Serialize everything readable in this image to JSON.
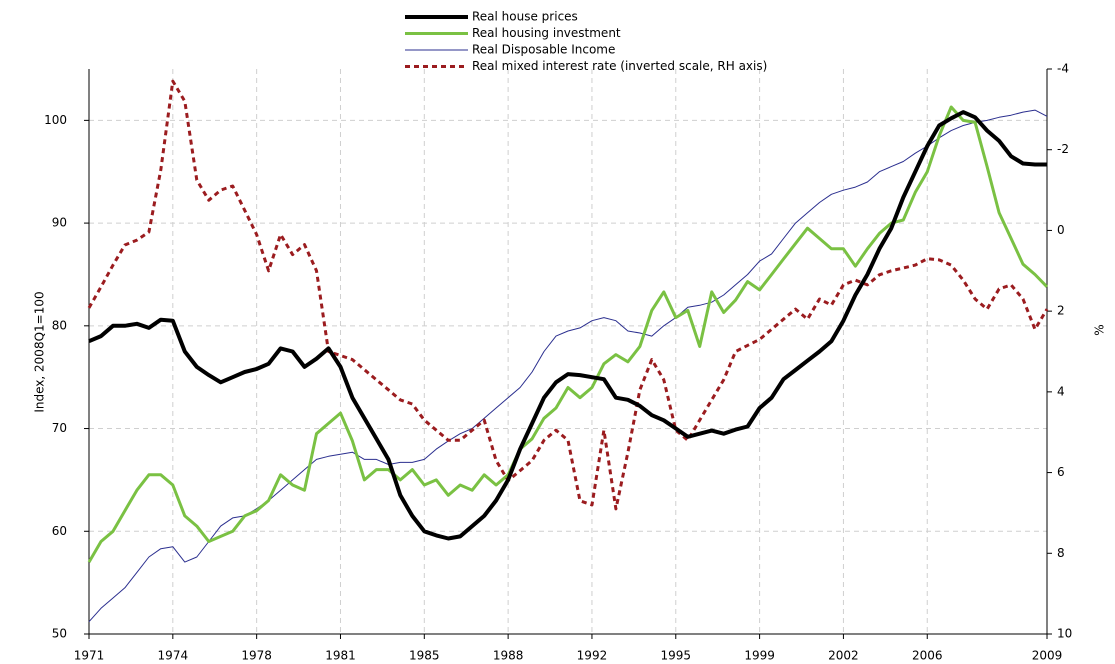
{
  "chart_data": {
    "type": "line",
    "y_label": "Index, 2008Q1=100",
    "y2_label": "%",
    "categories": [
      "1971",
      null,
      null,
      null,
      null,
      null,
      null,
      "1974",
      null,
      null,
      null,
      null,
      null,
      null,
      "1978",
      null,
      null,
      null,
      null,
      null,
      null,
      "1981",
      null,
      null,
      null,
      null,
      null,
      null,
      "1985",
      null,
      null,
      null,
      null,
      null,
      null,
      "1988",
      null,
      null,
      null,
      null,
      null,
      null,
      "1992",
      null,
      null,
      null,
      null,
      null,
      null,
      "1995",
      null,
      null,
      null,
      null,
      null,
      null,
      "1999",
      null,
      null,
      null,
      null,
      null,
      null,
      "2002",
      null,
      null,
      null,
      null,
      null,
      null,
      "2006",
      null,
      null,
      null,
      null,
      null,
      null,
      null,
      null,
      null,
      "2009"
    ],
    "series": [
      {
        "name": "Real house prices",
        "color": "#000000",
        "axis": "y",
        "values": [
          78.5,
          79,
          80,
          80,
          80.2,
          79.8,
          80.6,
          80.5,
          77.5,
          76,
          75.2,
          74.5,
          75,
          75.5,
          75.8,
          76.3,
          77.8,
          77.5,
          76,
          76.8,
          77.8,
          76,
          73,
          71,
          69,
          67,
          63.5,
          61.5,
          60,
          59.6,
          59.3,
          59.5,
          60.5,
          61.5,
          63,
          65,
          68,
          70.5,
          73,
          74.5,
          75.3,
          75.2,
          75,
          74.8,
          73,
          72.8,
          72.2,
          71.3,
          70.8,
          70,
          69.2,
          69.5,
          69.8,
          69.5,
          69.9,
          70.2,
          72,
          73,
          74.8,
          75.7,
          76.6,
          77.5,
          78.5,
          80.5,
          83,
          85,
          87.5,
          89.5,
          92.5,
          95,
          97.5,
          99.5,
          100.2,
          100.8,
          100.3,
          99,
          98,
          96.5,
          95.8,
          95.7,
          95.7
        ]
      },
      {
        "name": "Real housing investment",
        "color": "#7ac143",
        "axis": "y",
        "values": [
          57,
          59,
          60,
          62,
          64,
          65.5,
          65.5,
          64.5,
          61.5,
          60.5,
          59,
          59.5,
          60,
          61.5,
          62,
          63,
          65.5,
          64.5,
          64,
          69.5,
          70.5,
          71.5,
          68.8,
          65,
          66,
          66,
          65,
          66,
          64.5,
          65,
          63.5,
          64.5,
          64,
          65.5,
          64.5,
          65.5,
          68,
          69,
          71,
          72,
          74,
          73,
          74,
          76.3,
          77.2,
          76.5,
          78,
          81.5,
          83.3,
          80.8,
          81.5,
          78,
          83.3,
          81.3,
          82.5,
          84.3,
          83.5,
          85,
          86.5,
          88,
          89.5,
          88.5,
          87.5,
          87.5,
          85.8,
          87.5,
          89,
          90,
          90.3,
          93,
          95,
          98.5,
          101.3,
          100,
          99.8,
          95.5,
          91,
          88.5,
          86,
          85,
          83.8
        ]
      },
      {
        "name": "Real Disposable Income",
        "color": "#2b2f8f",
        "axis": "y",
        "values": [
          51.2,
          52.5,
          53.5,
          54.5,
          56,
          57.5,
          58.3,
          58.5,
          57,
          57.5,
          59,
          60.5,
          61.3,
          61.5,
          62.2,
          63,
          64,
          65,
          66,
          67,
          67.3,
          67.5,
          67.7,
          67,
          67,
          66.5,
          66.7,
          66.7,
          67,
          68,
          68.8,
          69.5,
          70,
          71,
          72,
          73,
          74,
          75.5,
          77.5,
          79,
          79.5,
          79.8,
          80.5,
          80.8,
          80.5,
          79.5,
          79.3,
          79,
          80,
          80.8,
          81.8,
          82,
          82.3,
          83,
          84,
          85,
          86.3,
          87,
          88.5,
          90,
          91,
          92,
          92.8,
          93.2,
          93.5,
          94,
          95,
          95.5,
          96,
          96.8,
          97.5,
          98.3,
          99,
          99.5,
          99.8,
          100,
          100.3,
          100.5,
          100.8,
          101,
          100.4
        ]
      },
      {
        "name": "Real mixed interest rate (inverted scale, RH axis)",
        "color": "#9b1c1f",
        "axis": "y2",
        "values": [
          1.92,
          1.4,
          0.86,
          0.36,
          0.24,
          0.04,
          -1.5,
          -3.7,
          -3.2,
          -1.25,
          -0.75,
          -1,
          -1.1,
          -0.5,
          0.1,
          1,
          0.1,
          0.6,
          0.35,
          1,
          3,
          3.1,
          3.2,
          3.45,
          3.7,
          3.95,
          4.2,
          4.3,
          4.7,
          4.95,
          5.2,
          5.2,
          4.95,
          4.7,
          5.7,
          6.2,
          5.95,
          5.7,
          5.2,
          4.95,
          5.2,
          6.7,
          6.8,
          4.95,
          6.9,
          5.5,
          3.95,
          3.2,
          3.7,
          4.95,
          5.2,
          4.7,
          4.2,
          3.7,
          3,
          2.85,
          2.7,
          2.45,
          2.2,
          1.95,
          2.2,
          1.7,
          1.85,
          1.35,
          1.23,
          1.35,
          1.1,
          1,
          0.93,
          0.86,
          0.7,
          0.73,
          0.86,
          1.23,
          1.7,
          1.95,
          1.45,
          1.35,
          1.7,
          2.45,
          1.95
        ]
      }
    ],
    "ylim": [
      50,
      105
    ],
    "yticks": [
      50,
      60,
      70,
      80,
      90,
      100
    ],
    "y2lim": [
      10,
      -4
    ],
    "y2ticks": [
      -4,
      -2,
      0,
      2,
      4,
      6,
      8,
      10
    ],
    "grid": true
  }
}
